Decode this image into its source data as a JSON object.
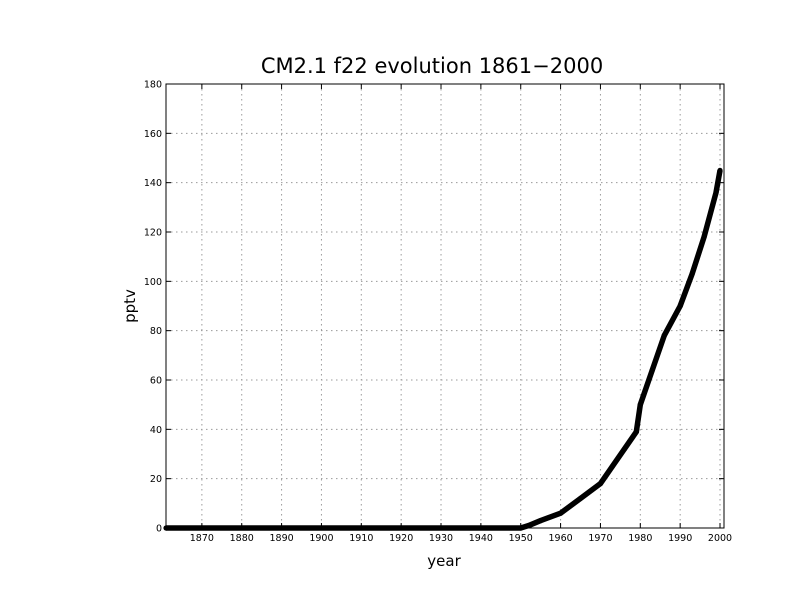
{
  "chart_data": {
    "type": "line",
    "title": "CM2.1  f22  evolution  1861−2000",
    "xlabel": "year",
    "ylabel": "pptv",
    "xlim": [
      1861,
      2001
    ],
    "ylim": [
      0,
      180
    ],
    "xticks": [
      1870,
      1880,
      1890,
      1900,
      1910,
      1920,
      1930,
      1940,
      1950,
      1960,
      1970,
      1980,
      1990,
      2000
    ],
    "yticks": [
      0,
      20,
      40,
      60,
      80,
      100,
      120,
      140,
      160,
      180
    ],
    "grid": true,
    "series": [
      {
        "x": [
          1861,
          1950,
          1952,
          1955,
          1960,
          1965,
          1970,
          1973,
          1976,
          1979,
          1980,
          1983,
          1986,
          1990,
          1993,
          1996,
          1999,
          2000
        ],
        "y": [
          0,
          0,
          1,
          3,
          6,
          12,
          18,
          25,
          32,
          39,
          50,
          64,
          78,
          90,
          103,
          118,
          136,
          145
        ]
      }
    ]
  }
}
